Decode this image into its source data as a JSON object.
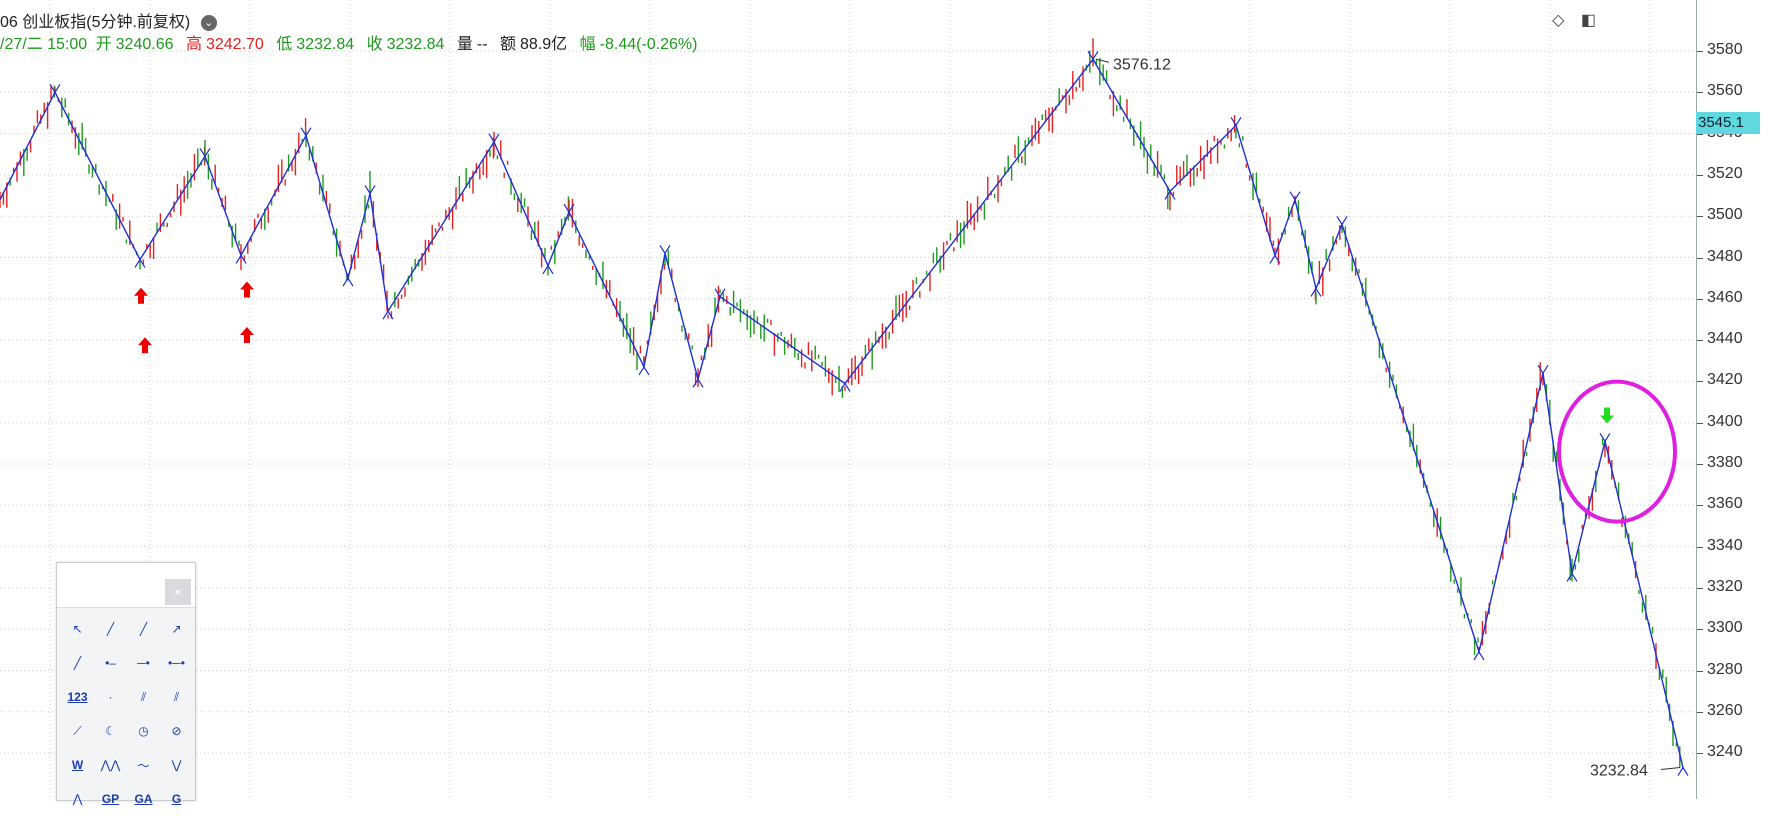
{
  "header": {
    "title": "06 创业板指(5分钟.前复权)",
    "dropdown_icon": "chevron-down-icon",
    "date": "/27/二 15:00",
    "open_label": "开",
    "open_value": "3240.66",
    "high_label": "高",
    "high_value": "3242.70",
    "low_label": "低",
    "low_value": "3232.84",
    "close_label": "收",
    "close_value": "3232.84",
    "volume_label": "量",
    "volume_value": "--",
    "amount_label": "额",
    "amount_value": "88.9亿",
    "change_label": "幅",
    "change_value": "-8.44(-0.26%)"
  },
  "top_icons": [
    "diamond-icon",
    "panel-toggle-icon"
  ],
  "y_axis": {
    "ticks": [
      "3580",
      "3560",
      "3540",
      "3520",
      "3500",
      "3480",
      "3460",
      "3440",
      "3420",
      "3400",
      "3380",
      "3360",
      "3340",
      "3320",
      "3300",
      "3280",
      "3260",
      "3240"
    ],
    "current_price_tag": "3545.1"
  },
  "annotations": {
    "high_label": "3576.12",
    "low_label": "3232.84"
  },
  "colors": {
    "up": "#e52020",
    "down": "#1e9a1e",
    "zigzag": "#1d2fd6",
    "circle": "#e020e0",
    "buy_arrow": "#ee0000",
    "sell_arrow": "#22dd22",
    "price_tag": "#5fd8e0"
  },
  "chart_data": {
    "type": "line",
    "name": "zigzag",
    "y_range": [
      3228,
      3585
    ],
    "zigzag_points": [
      [
        0,
        3508
      ],
      [
        55,
        3560
      ],
      [
        140,
        3479
      ],
      [
        205,
        3529
      ],
      [
        241,
        3481
      ],
      [
        306,
        3539
      ],
      [
        348,
        3470
      ],
      [
        370,
        3511
      ],
      [
        388,
        3454
      ],
      [
        494,
        3536
      ],
      [
        548,
        3476
      ],
      [
        569,
        3502
      ],
      [
        644,
        3427
      ],
      [
        665,
        3482
      ],
      [
        698,
        3421
      ],
      [
        720,
        3461
      ],
      [
        845,
        3419
      ],
      [
        1093,
        3576
      ],
      [
        1170,
        3512
      ],
      [
        1236,
        3544
      ],
      [
        1275,
        3481
      ],
      [
        1295,
        3508
      ],
      [
        1316,
        3465
      ],
      [
        1342,
        3496
      ],
      [
        1479,
        3289
      ],
      [
        1543,
        3424
      ],
      [
        1572,
        3327
      ],
      [
        1605,
        3391
      ],
      [
        1683,
        3233
      ]
    ],
    "buy_signals": [
      [
        141,
        3461
      ],
      [
        145,
        3437
      ],
      [
        247,
        3464
      ],
      [
        247,
        3442
      ]
    ],
    "sell_signals": [
      [
        1607,
        3404
      ]
    ],
    "highlight_circle": {
      "cx": 1617,
      "cy": 3386
    }
  },
  "toolbox": {
    "close_label": "×",
    "tools": [
      {
        "name": "pointer-tool",
        "label": ""
      },
      {
        "name": "segment-tool",
        "label": ""
      },
      {
        "name": "line-tool",
        "label": ""
      },
      {
        "name": "arrow-line-tool",
        "label": ""
      },
      {
        "name": "ray-tool",
        "label": ""
      },
      {
        "name": "horizontal-segment-tool",
        "label": ""
      },
      {
        "name": "horizontal-ray-tool",
        "label": ""
      },
      {
        "name": "horizontal-line-tool",
        "label": ""
      },
      {
        "name": "vertical-line-tool",
        "label": "123"
      },
      {
        "name": "price-label-tool",
        "label": ""
      },
      {
        "name": "parallel-channel-tool",
        "label": ""
      },
      {
        "name": "fork-tool",
        "label": ""
      },
      {
        "name": "regression-tool",
        "label": ""
      },
      {
        "name": "arc-tool",
        "label": ""
      },
      {
        "name": "circle-tool",
        "label": ""
      },
      {
        "name": "gann-tool",
        "label": ""
      },
      {
        "name": "wave-tool",
        "label": "W"
      },
      {
        "name": "elliott-tool",
        "label": ""
      },
      {
        "name": "trend-tool",
        "label": ""
      },
      {
        "name": "zigzag-tool",
        "label": ""
      },
      {
        "name": "pattern-tool",
        "label": ""
      },
      {
        "name": "gp-tool",
        "label": "GP"
      },
      {
        "name": "ga-tool",
        "label": "GA"
      },
      {
        "name": "g-tool",
        "label": "G"
      }
    ]
  }
}
